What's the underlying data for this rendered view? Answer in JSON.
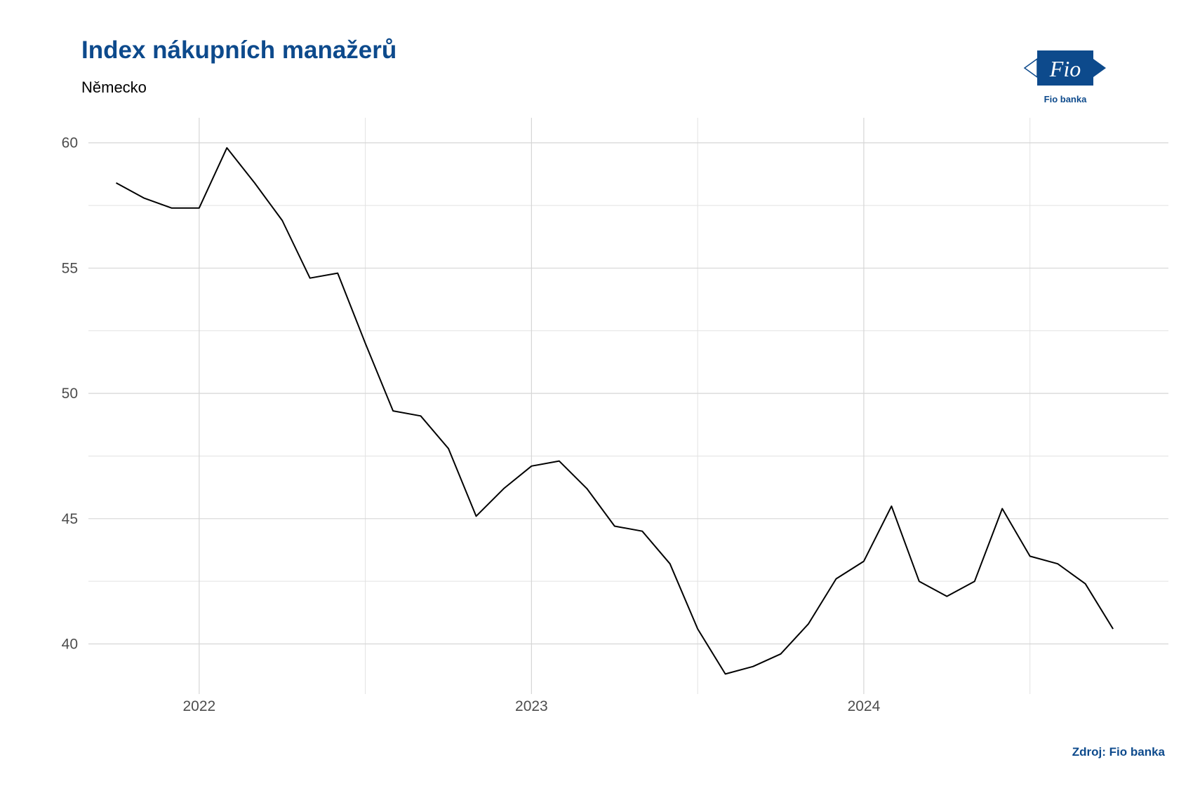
{
  "header": {
    "title": "Index nákupních manažerů",
    "subtitle": "Německo"
  },
  "logo": {
    "text": "Fio",
    "caption": "Fio banka",
    "color": "#0d4a8c"
  },
  "footer": {
    "source": "Zdroj: Fio banka"
  },
  "chart_data": {
    "type": "line",
    "title": "Index nákupních manažerů",
    "subtitle": "Německo",
    "xlabel": "",
    "ylabel": "",
    "x_ticks": [
      "2022",
      "2023",
      "2024"
    ],
    "y_ticks": [
      40,
      45,
      50,
      55,
      60
    ],
    "ylim": [
      38,
      61
    ],
    "xlim": [
      "2021-09-01",
      "2024-12-01"
    ],
    "grid": true,
    "legend": "none",
    "line_color": "#000000",
    "series": [
      {
        "x": [
          "2021-10",
          "2021-11",
          "2021-12",
          "2022-01",
          "2022-02",
          "2022-03",
          "2022-04",
          "2022-05",
          "2022-06",
          "2022-07",
          "2022-08",
          "2022-09",
          "2022-10",
          "2022-11",
          "2022-12",
          "2023-01",
          "2023-02",
          "2023-03",
          "2023-04",
          "2023-05",
          "2023-06",
          "2023-07",
          "2023-08",
          "2023-09",
          "2023-10",
          "2023-11",
          "2023-12",
          "2024-01",
          "2024-02",
          "2024-03",
          "2024-04",
          "2024-05",
          "2024-06",
          "2024-07",
          "2024-08",
          "2024-09",
          "2024-10"
        ],
        "values": [
          58.4,
          57.8,
          57.4,
          57.4,
          59.8,
          58.4,
          56.9,
          54.6,
          54.8,
          52.0,
          49.3,
          49.1,
          47.8,
          45.1,
          46.2,
          47.1,
          47.3,
          46.2,
          44.7,
          44.5,
          43.2,
          40.6,
          38.8,
          39.1,
          39.6,
          40.8,
          42.6,
          43.3,
          45.5,
          42.5,
          41.9,
          42.5,
          45.4,
          43.5,
          43.2,
          42.4,
          40.6
        ]
      }
    ]
  }
}
